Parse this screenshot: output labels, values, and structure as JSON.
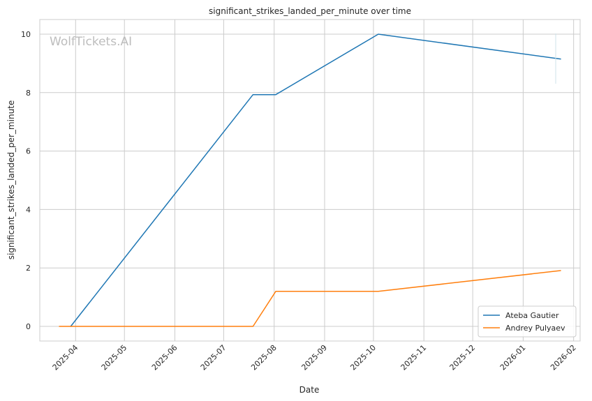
{
  "chart_data": {
    "type": "line",
    "title": "significant_strikes_landed_per_minute over time",
    "xlabel": "Date",
    "ylabel": "significant_strikes_landed_per_minute",
    "watermark": "WolfTickets.AI",
    "x_axis": {
      "kind": "date",
      "range": [
        "2025-03-10",
        "2026-02-05"
      ],
      "ticks": [
        "2025-04-01",
        "2025-05-01",
        "2025-06-01",
        "2025-07-01",
        "2025-08-01",
        "2025-09-01",
        "2025-10-01",
        "2025-11-01",
        "2025-12-01",
        "2026-01-01",
        "2026-02-01"
      ],
      "tick_labels": [
        "2025-04",
        "2025-05",
        "2025-06",
        "2025-07",
        "2025-08",
        "2025-09",
        "2025-10",
        "2025-11",
        "2025-12",
        "2026-01",
        "2026-02"
      ]
    },
    "y_axis": {
      "range": [
        -0.5,
        10.5
      ],
      "ticks": [
        0,
        2,
        4,
        6,
        8,
        10
      ],
      "tick_labels": [
        "0",
        "2",
        "4",
        "6",
        "8",
        "10"
      ]
    },
    "grid": true,
    "legend": {
      "placement": "lower-right"
    },
    "series": [
      {
        "name": "Ateba Gautier",
        "color": "#1f77b4",
        "points": [
          {
            "x": "2025-03-29",
            "y": 0
          },
          {
            "x": "2025-07-19",
            "y": 7.93
          },
          {
            "x": "2025-08-02",
            "y": 7.93
          },
          {
            "x": "2025-10-04",
            "y": 10.0
          },
          {
            "x": "2026-01-24",
            "y": 9.15
          }
        ]
      },
      {
        "name": "Andrey Pulyaev",
        "color": "#ff7f0e",
        "points": [
          {
            "x": "2025-03-22",
            "y": 0
          },
          {
            "x": "2025-07-19",
            "y": 0
          },
          {
            "x": "2025-08-02",
            "y": 1.2
          },
          {
            "x": "2025-10-04",
            "y": 1.2
          },
          {
            "x": "2026-01-24",
            "y": 1.91
          }
        ]
      }
    ]
  }
}
